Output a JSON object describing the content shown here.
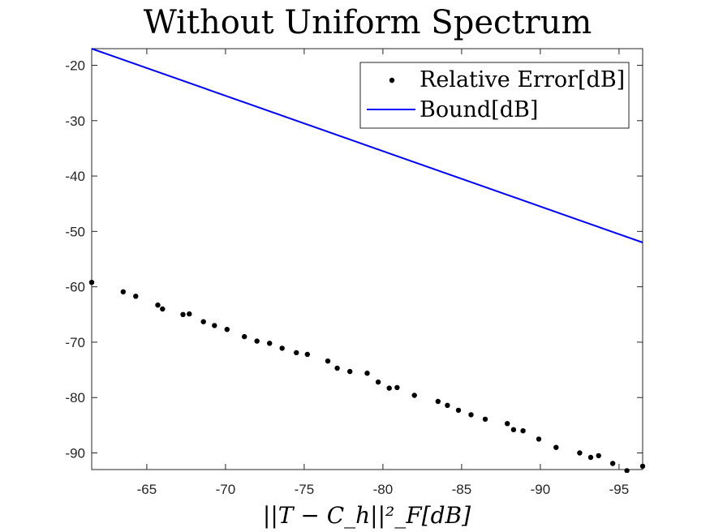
{
  "chart_data": {
    "type": "scatter",
    "title": "Without Uniform Spectrum",
    "xlabel": "||T − C_h||²_F[dB]",
    "ylabel": "",
    "xlim": [
      -61.5,
      -96.5
    ],
    "ylim": [
      -93,
      -17
    ],
    "x_reversed": true,
    "x_ticks": [
      -65,
      -70,
      -75,
      -80,
      -85,
      -90,
      -95
    ],
    "y_ticks": [
      -20,
      -30,
      -40,
      -50,
      -60,
      -70,
      -80,
      -90
    ],
    "grid": false,
    "legend_position": "top-right",
    "series": [
      {
        "name": "Relative Error[dB]",
        "style": "dots",
        "color": "#000000",
        "points": [
          [
            -61.5,
            -59.2
          ],
          [
            -63.5,
            -60.9
          ],
          [
            -64.3,
            -61.7
          ],
          [
            -65.7,
            -63.3
          ],
          [
            -66.0,
            -64.0
          ],
          [
            -67.3,
            -65.0
          ],
          [
            -67.7,
            -64.9
          ],
          [
            -68.6,
            -66.3
          ],
          [
            -69.3,
            -67.0
          ],
          [
            -70.1,
            -67.7
          ],
          [
            -71.2,
            -69.0
          ],
          [
            -72.0,
            -69.8
          ],
          [
            -72.8,
            -70.2
          ],
          [
            -73.6,
            -71.1
          ],
          [
            -74.5,
            -71.9
          ],
          [
            -75.2,
            -72.2
          ],
          [
            -76.5,
            -73.4
          ],
          [
            -77.1,
            -74.7
          ],
          [
            -77.9,
            -75.3
          ],
          [
            -79.0,
            -75.6
          ],
          [
            -79.7,
            -77.2
          ],
          [
            -80.4,
            -78.3
          ],
          [
            -80.9,
            -78.2
          ],
          [
            -82.0,
            -79.6
          ],
          [
            -83.5,
            -80.7
          ],
          [
            -84.1,
            -81.4
          ],
          [
            -84.8,
            -82.3
          ],
          [
            -85.6,
            -83.1
          ],
          [
            -86.5,
            -83.9
          ],
          [
            -87.9,
            -84.7
          ],
          [
            -88.3,
            -85.8
          ],
          [
            -88.9,
            -86.0
          ],
          [
            -89.9,
            -87.5
          ],
          [
            -91.0,
            -89.0
          ],
          [
            -92.5,
            -90.0
          ],
          [
            -93.2,
            -90.8
          ],
          [
            -93.7,
            -90.5
          ],
          [
            -94.6,
            -91.9
          ],
          [
            -95.5,
            -93.2
          ],
          [
            -96.5,
            -92.4
          ]
        ]
      },
      {
        "name": "Bound[dB]",
        "style": "line",
        "color": "#0000ff",
        "points": [
          [
            -61.5,
            -17.0
          ],
          [
            -96.5,
            -52.0
          ]
        ]
      }
    ]
  }
}
